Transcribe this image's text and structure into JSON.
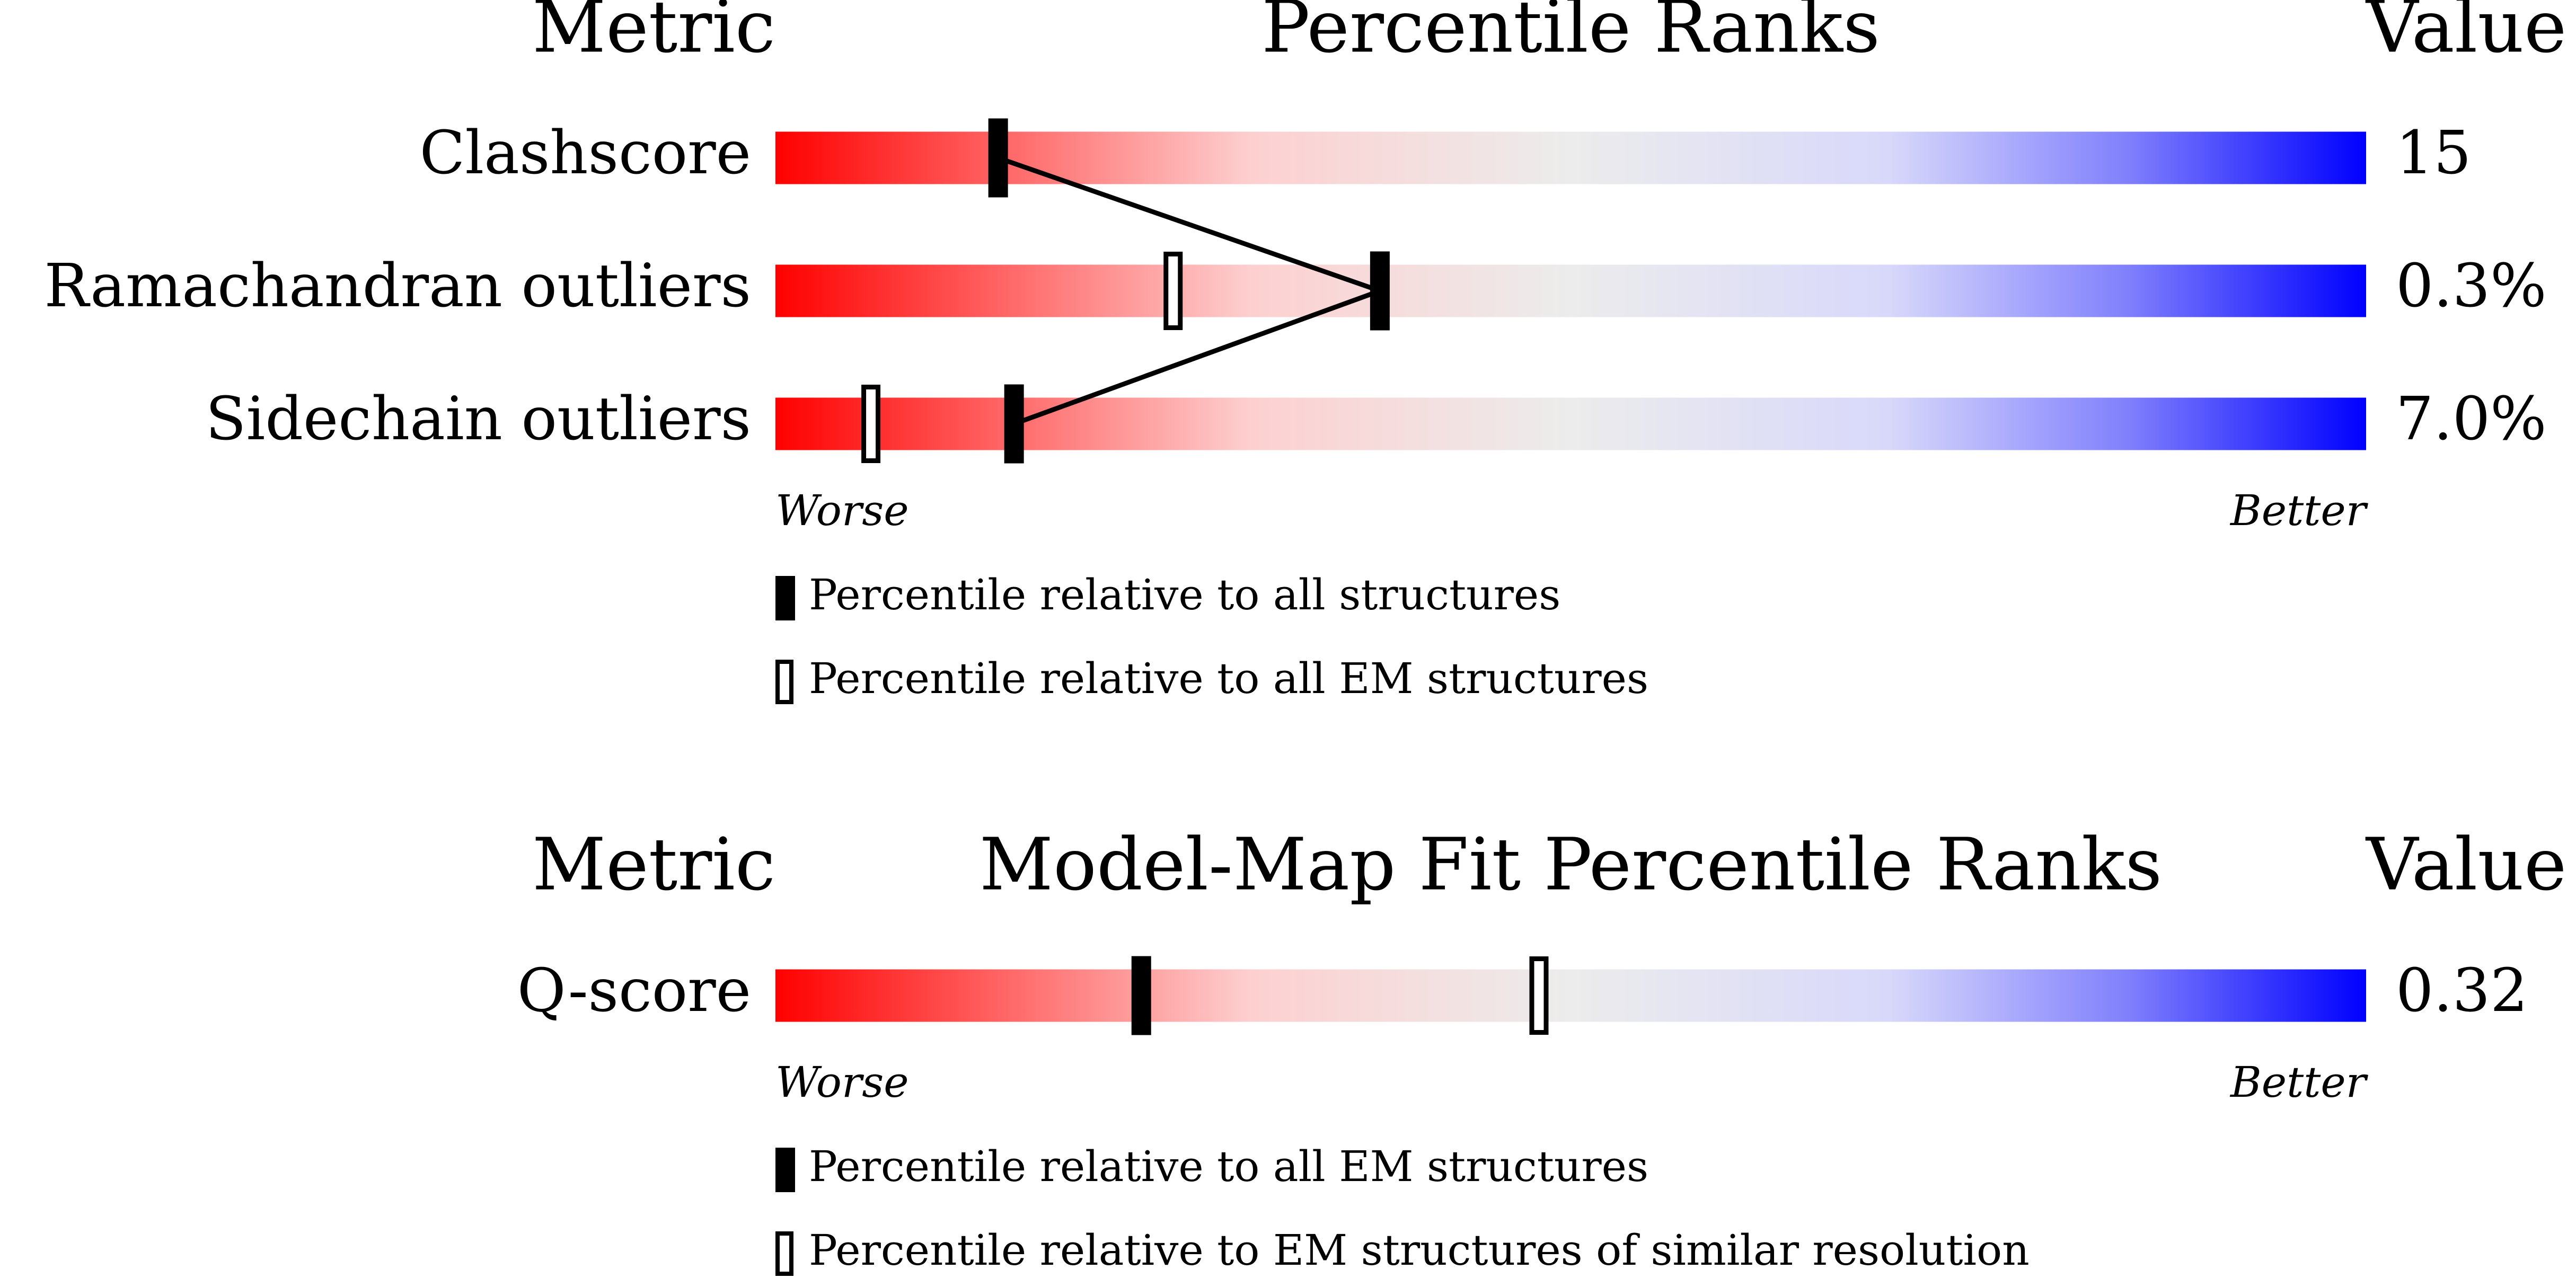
{
  "chart_data": [
    {
      "type": "percentile-slider",
      "header": {
        "metric": "Metric",
        "title": "Percentile Ranks",
        "value": "Value"
      },
      "categories": [
        "Clashscore",
        "Ramachandran outliers",
        "Sidechain outliers"
      ],
      "metric_values": [
        "15",
        "0.3%",
        "7.0%"
      ],
      "series": [
        {
          "name": "Percentile relative to all structures",
          "style": "filled",
          "values": [
            14,
            38,
            15
          ]
        },
        {
          "name": "Percentile relative to all EM structures",
          "style": "open",
          "values": [
            null,
            25,
            6
          ]
        }
      ],
      "xlim": [
        0,
        100
      ],
      "axis_labels": {
        "low": "Worse",
        "high": "Better"
      },
      "connect_series": 0
    },
    {
      "type": "percentile-slider",
      "header": {
        "metric": "Metric",
        "title": "Model-Map Fit Percentile Ranks",
        "value": "Value"
      },
      "categories": [
        "Q-score"
      ],
      "metric_values": [
        "0.32"
      ],
      "series": [
        {
          "name": "Percentile relative to all EM structures",
          "style": "filled",
          "values": [
            23
          ]
        },
        {
          "name": "Percentile relative to EM structures of similar resolution",
          "style": "open",
          "values": [
            48
          ]
        }
      ],
      "xlim": [
        0,
        100
      ],
      "axis_labels": {
        "low": "Worse",
        "high": "Better"
      },
      "connect_series": 0
    }
  ]
}
